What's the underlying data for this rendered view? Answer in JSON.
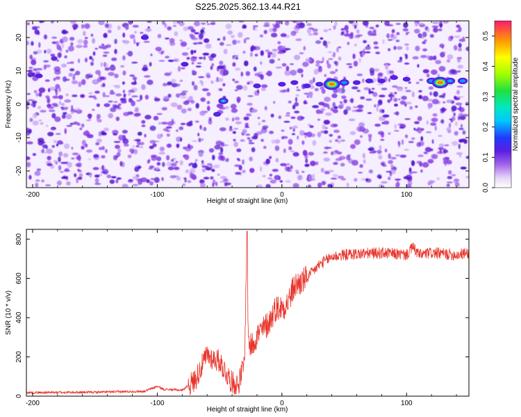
{
  "title": "S225.2025.362.13.44.R21",
  "chart_data": [
    {
      "type": "heatmap",
      "xlabel": "Height of straight line (km)",
      "ylabel": "Frequency (Hz)",
      "xlim": [
        -205,
        150
      ],
      "ylim": [
        -25,
        25
      ],
      "x_ticks": [
        -200,
        -100,
        0,
        100
      ],
      "x_tick_labels": [
        "-200",
        "-100",
        "0",
        "100"
      ],
      "y_ticks": [
        -20,
        -10,
        0,
        10,
        20
      ],
      "y_tick_labels": [
        "-20",
        "-10",
        "0",
        "10",
        "20"
      ],
      "colorbar": {
        "label": "Normalized spectral amplitude",
        "range": [
          0.0,
          0.55
        ],
        "ticks": [
          0.0,
          0.1,
          0.2,
          0.3,
          0.4,
          0.5
        ],
        "tick_labels": [
          "0.0",
          "0.1",
          "0.2",
          "0.3",
          "0.4",
          "0.5"
        ]
      },
      "features": [
        {
          "x": -195,
          "y": 8.5,
          "value": 0.12
        },
        {
          "x": -110,
          "y": 20,
          "value": 0.15
        },
        {
          "x": -78,
          "y": 12,
          "value": 0.12
        },
        {
          "x": -52,
          "y": -3,
          "value": 0.17
        },
        {
          "x": -47,
          "y": 1,
          "value": 0.26
        },
        {
          "x": -20,
          "y": 5.5,
          "value": 0.15
        },
        {
          "x": 0,
          "y": 6,
          "value": 0.12
        },
        {
          "x": 10,
          "y": 6.5,
          "value": 0.13
        },
        {
          "x": 20,
          "y": 5.5,
          "value": 0.15
        },
        {
          "x": 30,
          "y": 6,
          "value": 0.17
        },
        {
          "x": 40,
          "y": 6,
          "value": 0.5
        },
        {
          "x": 50,
          "y": 6.5,
          "value": 0.2
        },
        {
          "x": 60,
          "y": 6.5,
          "value": 0.14
        },
        {
          "x": 70,
          "y": 7,
          "value": 0.16
        },
        {
          "x": 80,
          "y": 7,
          "value": 0.14
        },
        {
          "x": 90,
          "y": 8,
          "value": 0.13
        },
        {
          "x": 100,
          "y": 7.5,
          "value": 0.13
        },
        {
          "x": 120,
          "y": 7,
          "value": 0.2
        },
        {
          "x": 127,
          "y": 6.5,
          "value": 0.5
        },
        {
          "x": 135,
          "y": 7,
          "value": 0.22
        },
        {
          "x": 145,
          "y": 7,
          "value": 0.2
        }
      ]
    },
    {
      "type": "line",
      "xlabel": "Height of straight line (km)",
      "ylabel": "SNR (10 * v/v)",
      "xlim": [
        -205,
        150
      ],
      "ylim": [
        0,
        850
      ],
      "x_ticks": [
        -200,
        -100,
        0,
        100
      ],
      "x_tick_labels": [
        "-200",
        "-100",
        "0",
        "100"
      ],
      "y_ticks": [
        0,
        200,
        400,
        600,
        800
      ],
      "y_tick_labels": [
        "0",
        "200",
        "400",
        "600",
        "800"
      ],
      "series_color": "#e8332a",
      "x": [
        -205,
        -150,
        -110,
        -100,
        -95,
        -80,
        -70,
        -60,
        -55,
        -50,
        -45,
        -40,
        -35,
        -30,
        -28,
        -27,
        -25,
        -20,
        -15,
        -10,
        -5,
        0,
        5,
        10,
        15,
        20,
        30,
        40,
        50,
        60,
        80,
        100,
        105,
        110,
        120,
        130,
        140,
        150
      ],
      "y": [
        18,
        20,
        25,
        50,
        35,
        30,
        80,
        210,
        190,
        180,
        120,
        70,
        60,
        170,
        840,
        300,
        250,
        310,
        340,
        380,
        450,
        450,
        480,
        560,
        580,
        600,
        670,
        710,
        720,
        725,
        730,
        720,
        760,
        720,
        730,
        725,
        720,
        730
      ]
    }
  ]
}
